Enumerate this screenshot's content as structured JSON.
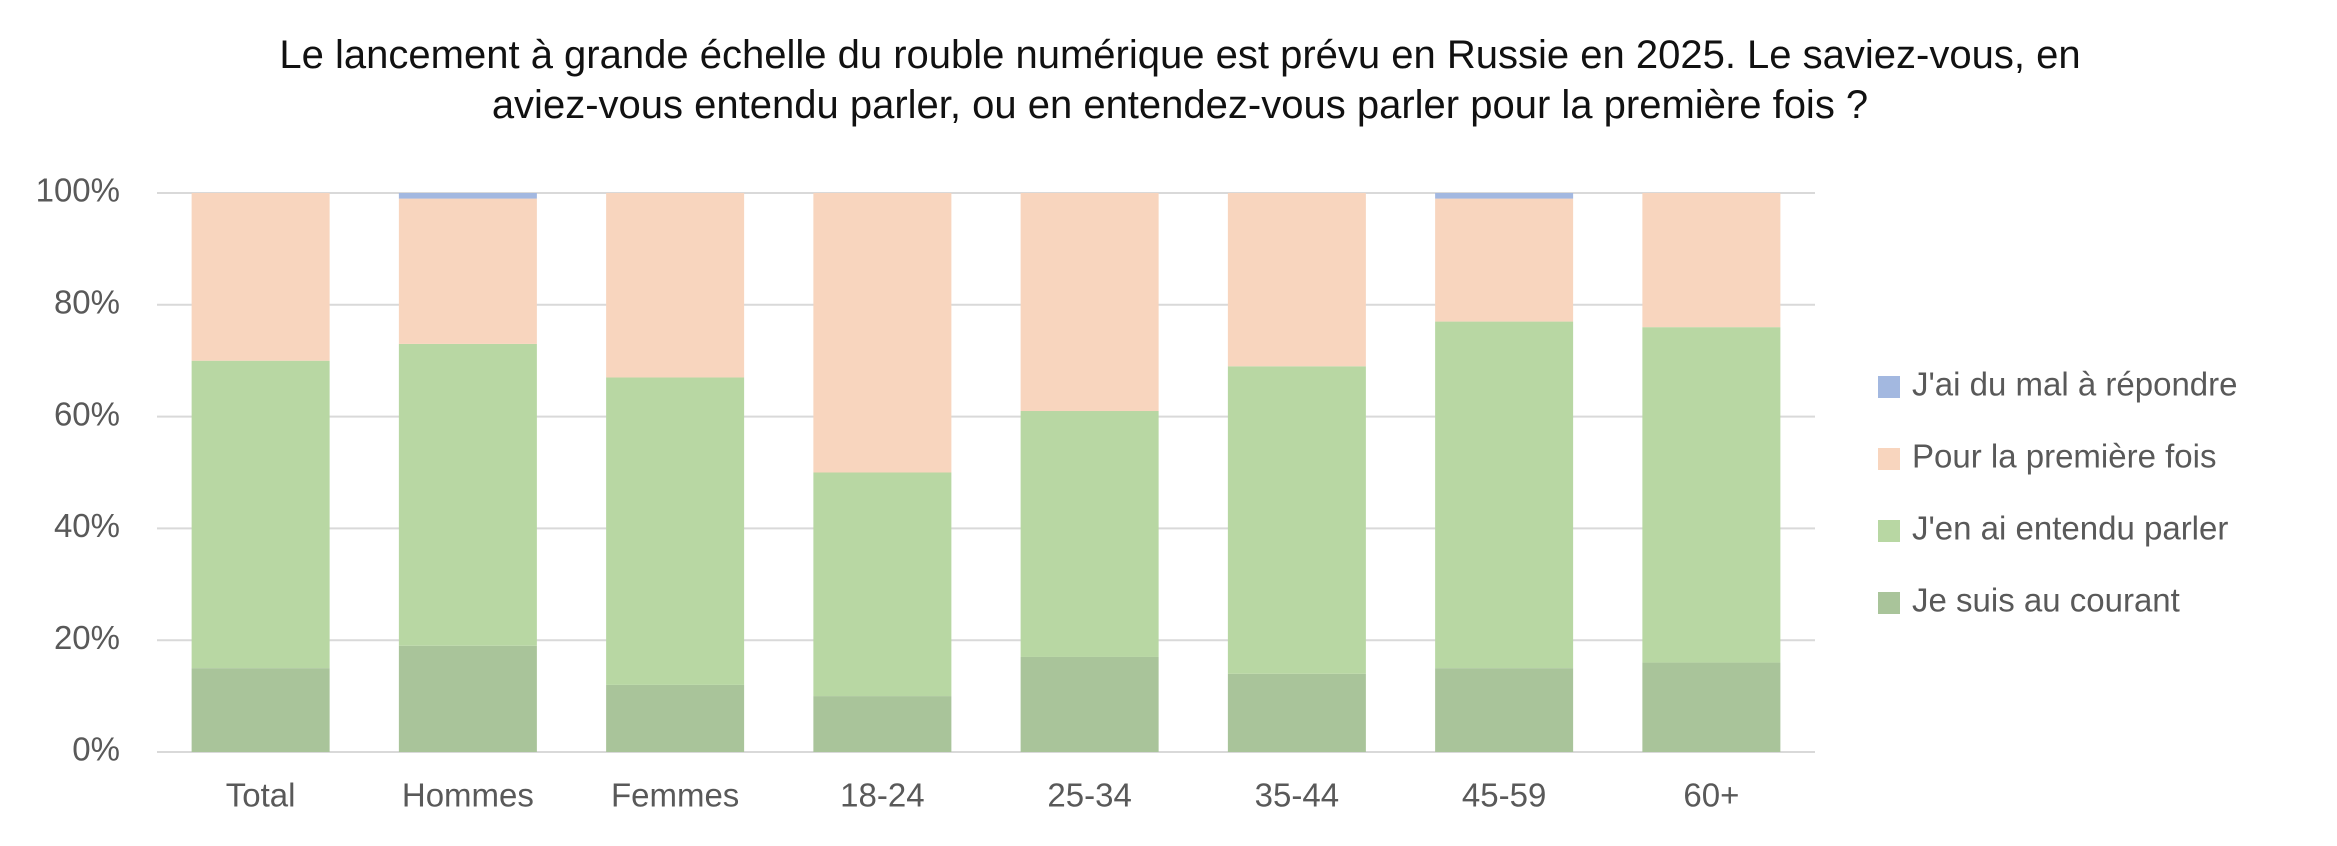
{
  "chart_data": {
    "type": "stacked_bar",
    "title": "Le lancement à grande échelle du rouble numérique est prévu en Russie en 2025. Le saviez-vous, en aviez-vous entendu parler, ou en entendez-vous parler pour la première fois ?",
    "categories": [
      "Total",
      "Hommes",
      "Femmes",
      "18-24",
      "25-34",
      "35-44",
      "45-59",
      "60+"
    ],
    "series": [
      {
        "name": "Je suis au courant",
        "color": "#a9c49a",
        "values": [
          15,
          19,
          12,
          10,
          17,
          14,
          15,
          16
        ]
      },
      {
        "name": "J'en ai entendu parler",
        "color": "#b8d7a3",
        "values": [
          55,
          54,
          55,
          40,
          44,
          55,
          62,
          60
        ]
      },
      {
        "name": "Pour la première fois",
        "color": "#f8d5be",
        "values": [
          30,
          26,
          33,
          50,
          39,
          31,
          22,
          24
        ]
      },
      {
        "name": "J'ai du mal à répondre",
        "color": "#a3b8e0",
        "values": [
          0,
          1,
          0,
          0,
          0,
          0,
          1,
          0
        ]
      }
    ],
    "ylim": [
      0,
      100
    ],
    "yticks": [
      {
        "value": 0,
        "label": "0%"
      },
      {
        "value": 20,
        "label": "20%"
      },
      {
        "value": 40,
        "label": "40%"
      },
      {
        "value": 60,
        "label": "60%"
      },
      {
        "value": 80,
        "label": "80%"
      },
      {
        "value": 100,
        "label": "100%"
      }
    ],
    "grid": true,
    "legend": "right"
  }
}
